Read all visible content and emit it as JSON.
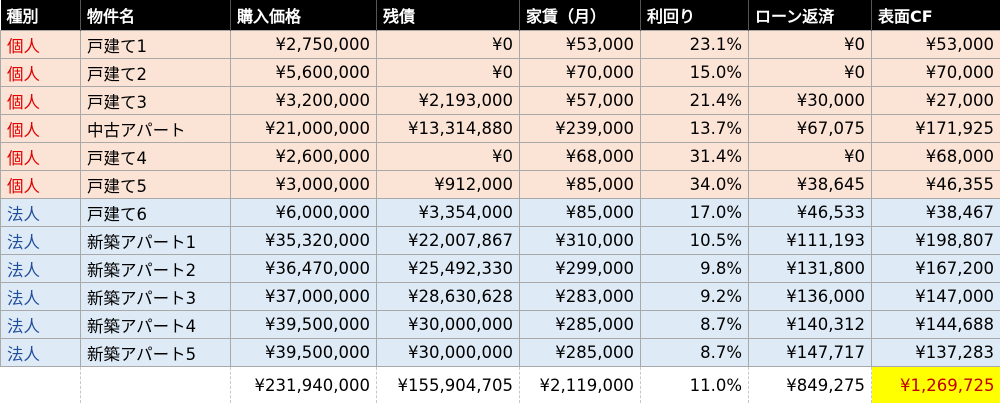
{
  "table": {
    "headers": [
      "種別",
      "物件名",
      "購入価格",
      "残債",
      "家賃（月）",
      "利回り",
      "ローン返済",
      "表面CF"
    ],
    "rows": [
      {
        "type": "個人",
        "category": "kojin",
        "name": "戸建て1",
        "price": "¥2,750,000",
        "debt": "¥0",
        "rent": "¥53,000",
        "yield": "23.1%",
        "loan": "¥0",
        "cf": "¥53,000"
      },
      {
        "type": "個人",
        "category": "kojin",
        "name": "戸建て2",
        "price": "¥5,600,000",
        "debt": "¥0",
        "rent": "¥70,000",
        "yield": "15.0%",
        "loan": "¥0",
        "cf": "¥70,000"
      },
      {
        "type": "個人",
        "category": "kojin",
        "name": "戸建て3",
        "price": "¥3,200,000",
        "debt": "¥2,193,000",
        "rent": "¥57,000",
        "yield": "21.4%",
        "loan": "¥30,000",
        "cf": "¥27,000"
      },
      {
        "type": "個人",
        "category": "kojin",
        "name": "中古アパート",
        "price": "¥21,000,000",
        "debt": "¥13,314,880",
        "rent": "¥239,000",
        "yield": "13.7%",
        "loan": "¥67,075",
        "cf": "¥171,925"
      },
      {
        "type": "個人",
        "category": "kojin",
        "name": "戸建て4",
        "price": "¥2,600,000",
        "debt": "¥0",
        "rent": "¥68,000",
        "yield": "31.4%",
        "loan": "¥0",
        "cf": "¥68,000"
      },
      {
        "type": "個人",
        "category": "kojin",
        "name": "戸建て5",
        "price": "¥3,000,000",
        "debt": "¥912,000",
        "rent": "¥85,000",
        "yield": "34.0%",
        "loan": "¥38,645",
        "cf": "¥46,355"
      },
      {
        "type": "法人",
        "category": "hojin",
        "name": "戸建て6",
        "price": "¥6,000,000",
        "debt": "¥3,354,000",
        "rent": "¥85,000",
        "yield": "17.0%",
        "loan": "¥46,533",
        "cf": "¥38,467"
      },
      {
        "type": "法人",
        "category": "hojin",
        "name": "新築アパート1",
        "price": "¥35,320,000",
        "debt": "¥22,007,867",
        "rent": "¥310,000",
        "yield": "10.5%",
        "loan": "¥111,193",
        "cf": "¥198,807"
      },
      {
        "type": "法人",
        "category": "hojin",
        "name": "新築アパート2",
        "price": "¥36,470,000",
        "debt": "¥25,492,330",
        "rent": "¥299,000",
        "yield": "9.8%",
        "loan": "¥131,800",
        "cf": "¥167,200"
      },
      {
        "type": "法人",
        "category": "hojin",
        "name": "新築アパート3",
        "price": "¥37,000,000",
        "debt": "¥28,630,628",
        "rent": "¥283,000",
        "yield": "9.2%",
        "loan": "¥136,000",
        "cf": "¥147,000"
      },
      {
        "type": "法人",
        "category": "hojin",
        "name": "新築アパート4",
        "price": "¥39,500,000",
        "debt": "¥30,000,000",
        "rent": "¥285,000",
        "yield": "8.7%",
        "loan": "¥140,312",
        "cf": "¥144,688"
      },
      {
        "type": "法人",
        "category": "hojin",
        "name": "新築アパート5",
        "price": "¥39,500,000",
        "debt": "¥30,000,000",
        "rent": "¥285,000",
        "yield": "8.7%",
        "loan": "¥147,717",
        "cf": "¥137,283"
      }
    ],
    "totals": {
      "price": "¥231,940,000",
      "debt": "¥155,904,705",
      "rent": "¥2,119,000",
      "yield": "11.0%",
      "loan": "¥849,275",
      "cf": "¥1,269,725"
    }
  }
}
